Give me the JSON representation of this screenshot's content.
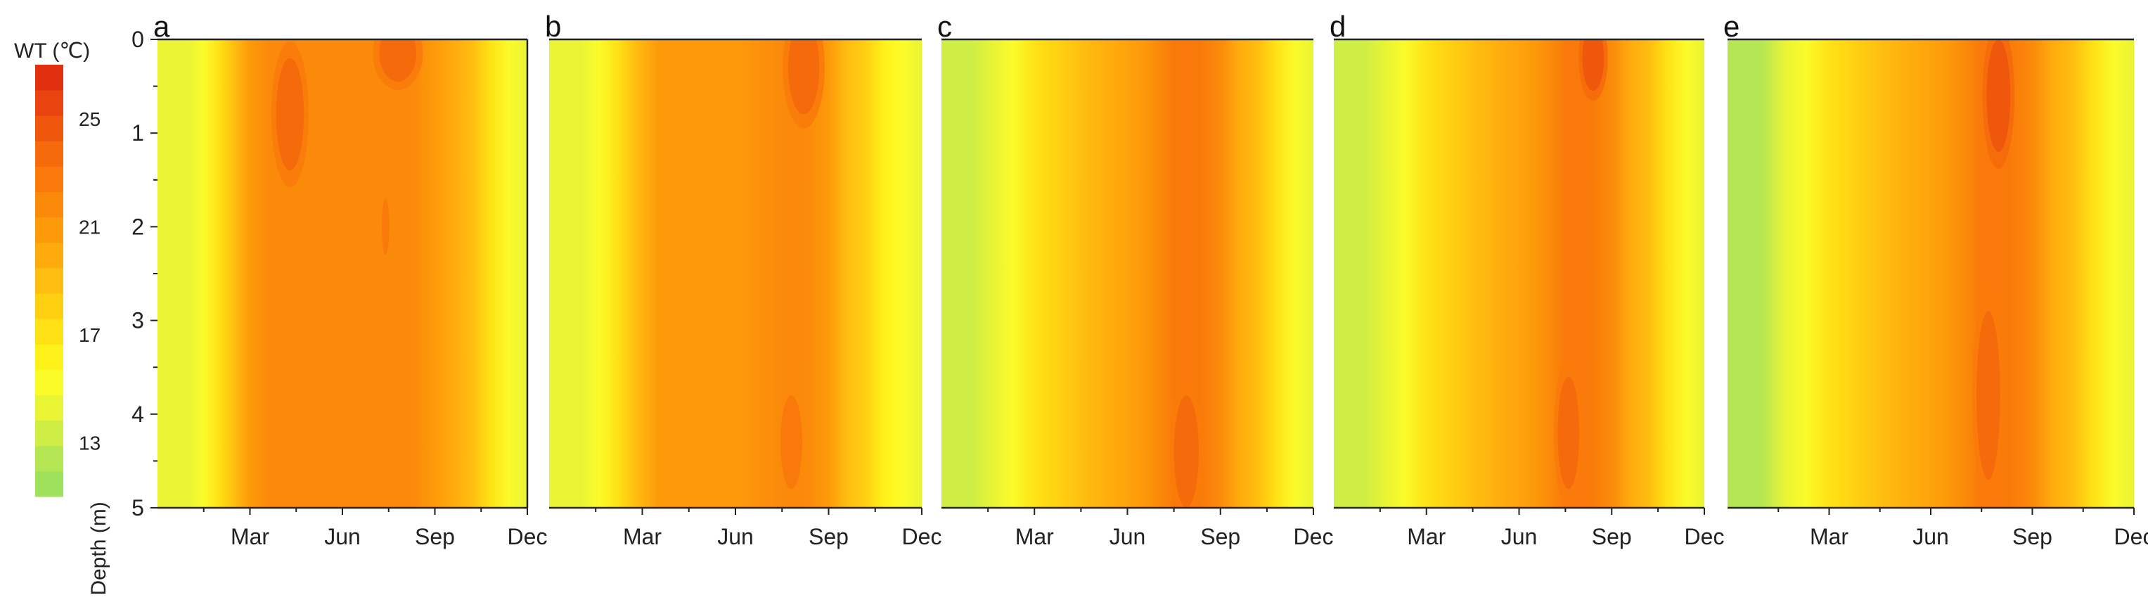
{
  "chart_data": {
    "type": "heatmap",
    "colorbar": {
      "title": "WT (℃)",
      "ticks": [
        25,
        21,
        17,
        13
      ],
      "range": [
        11,
        27
      ],
      "levels": [
        {
          "value": 11,
          "color": "#9ee15a"
        },
        {
          "value": 12,
          "color": "#b4e654"
        },
        {
          "value": 13,
          "color": "#cfee45"
        },
        {
          "value": 14,
          "color": "#e9f434"
        },
        {
          "value": 15,
          "color": "#fbfb2a"
        },
        {
          "value": 16,
          "color": "#fff21a"
        },
        {
          "value": 17,
          "color": "#ffe215"
        },
        {
          "value": 18,
          "color": "#ffd012"
        },
        {
          "value": 19,
          "color": "#ffbd10"
        },
        {
          "value": 20,
          "color": "#ffab0d"
        },
        {
          "value": 21,
          "color": "#fd9a0a"
        },
        {
          "value": 22,
          "color": "#fb8a0a"
        },
        {
          "value": 23,
          "color": "#f97a0a"
        },
        {
          "value": 24,
          "color": "#f56a0b"
        },
        {
          "value": 25,
          "color": "#ef570d"
        },
        {
          "value": 26,
          "color": "#e9430f"
        },
        {
          "value": 27,
          "color": "#e13010"
        }
      ]
    },
    "y_axis": {
      "label": "Depth (m)",
      "ticks": [
        0,
        1,
        2,
        3,
        4,
        5
      ],
      "range": [
        0,
        5
      ]
    },
    "x_axis": {
      "tick_labels": [
        "Mar",
        "Jun",
        "Sep",
        "Dec"
      ],
      "tick_months": [
        3,
        6,
        9,
        12
      ],
      "minor_months": [
        1.5,
        4.5,
        7.5,
        10.5
      ],
      "range": [
        0,
        12
      ]
    },
    "panels": [
      {
        "label": "a",
        "months": [
          0,
          1.0,
          1.5,
          2.0,
          2.5,
          3.0,
          3.6,
          4.5,
          6.0,
          7.5,
          8.3,
          9.0,
          9.6,
          10.2,
          10.8,
          11.4,
          12
        ],
        "temps": [
          14,
          14,
          15,
          17,
          19,
          21,
          22,
          22,
          22,
          22,
          22,
          21,
          20,
          19,
          17,
          15,
          14
        ],
        "hotspots": [
          {
            "month": 4.3,
            "depth": 0.8,
            "rx": 0.45,
            "ry": 0.6,
            "temp": 24
          },
          {
            "month": 7.8,
            "depth": 0.15,
            "rx": 0.6,
            "ry": 0.3,
            "temp": 24
          },
          {
            "month": 7.4,
            "depth": 2.0,
            "rx": 0.12,
            "ry": 0.3,
            "temp": 23
          }
        ]
      },
      {
        "label": "b",
        "months": [
          0,
          1.0,
          1.6,
          2.2,
          2.8,
          3.5,
          4.5,
          6.0,
          7.5,
          8.3,
          9.0,
          9.6,
          10.2,
          10.8,
          11.4,
          12
        ],
        "temps": [
          14,
          14,
          15,
          17,
          19,
          21,
          21,
          21,
          22,
          22,
          21,
          19,
          18,
          16,
          15,
          14
        ],
        "hotspots": [
          {
            "month": 8.2,
            "depth": 0.3,
            "rx": 0.5,
            "ry": 0.5,
            "temp": 24
          },
          {
            "month": 7.8,
            "depth": 4.3,
            "rx": 0.35,
            "ry": 0.5,
            "temp": 23
          }
        ]
      },
      {
        "label": "c",
        "months": [
          0,
          1.0,
          1.7,
          2.3,
          3.0,
          3.8,
          4.6,
          5.5,
          6.5,
          7.5,
          8.3,
          9.0,
          9.6,
          10.2,
          10.8,
          11.4,
          12
        ],
        "temps": [
          13,
          13,
          14,
          15,
          17,
          18,
          19,
          20,
          21,
          23,
          23,
          22,
          20,
          19,
          17,
          15,
          14
        ],
        "hotspots": [
          {
            "month": 7.9,
            "depth": 4.4,
            "rx": 0.4,
            "ry": 0.6,
            "temp": 24
          }
        ]
      },
      {
        "label": "d",
        "months": [
          0,
          1.0,
          1.7,
          2.3,
          3.0,
          3.8,
          4.6,
          5.5,
          6.5,
          7.5,
          8.3,
          9.0,
          9.6,
          10.2,
          10.8,
          11.4,
          12
        ],
        "temps": [
          13,
          13,
          14,
          15,
          17,
          18,
          19,
          20,
          21,
          23,
          23,
          22,
          20,
          19,
          17,
          15,
          14
        ],
        "hotspots": [
          {
            "month": 8.4,
            "depth": 0.2,
            "rx": 0.35,
            "ry": 0.35,
            "temp": 25
          },
          {
            "month": 7.6,
            "depth": 4.2,
            "rx": 0.35,
            "ry": 0.6,
            "temp": 24
          }
        ]
      },
      {
        "label": "e",
        "months": [
          0,
          1.0,
          1.7,
          2.3,
          3.0,
          3.8,
          4.6,
          5.5,
          6.5,
          7.5,
          8.3,
          9.0,
          9.6,
          10.2,
          10.8,
          11.4,
          12
        ],
        "temps": [
          12,
          12,
          14,
          15,
          17,
          18,
          19,
          20,
          21,
          23,
          23,
          22,
          20,
          19,
          17,
          15,
          14
        ],
        "hotspots": [
          {
            "month": 8.0,
            "depth": 0.6,
            "rx": 0.35,
            "ry": 0.6,
            "temp": 25
          },
          {
            "month": 7.7,
            "depth": 3.8,
            "rx": 0.35,
            "ry": 0.9,
            "temp": 24
          }
        ]
      }
    ]
  }
}
